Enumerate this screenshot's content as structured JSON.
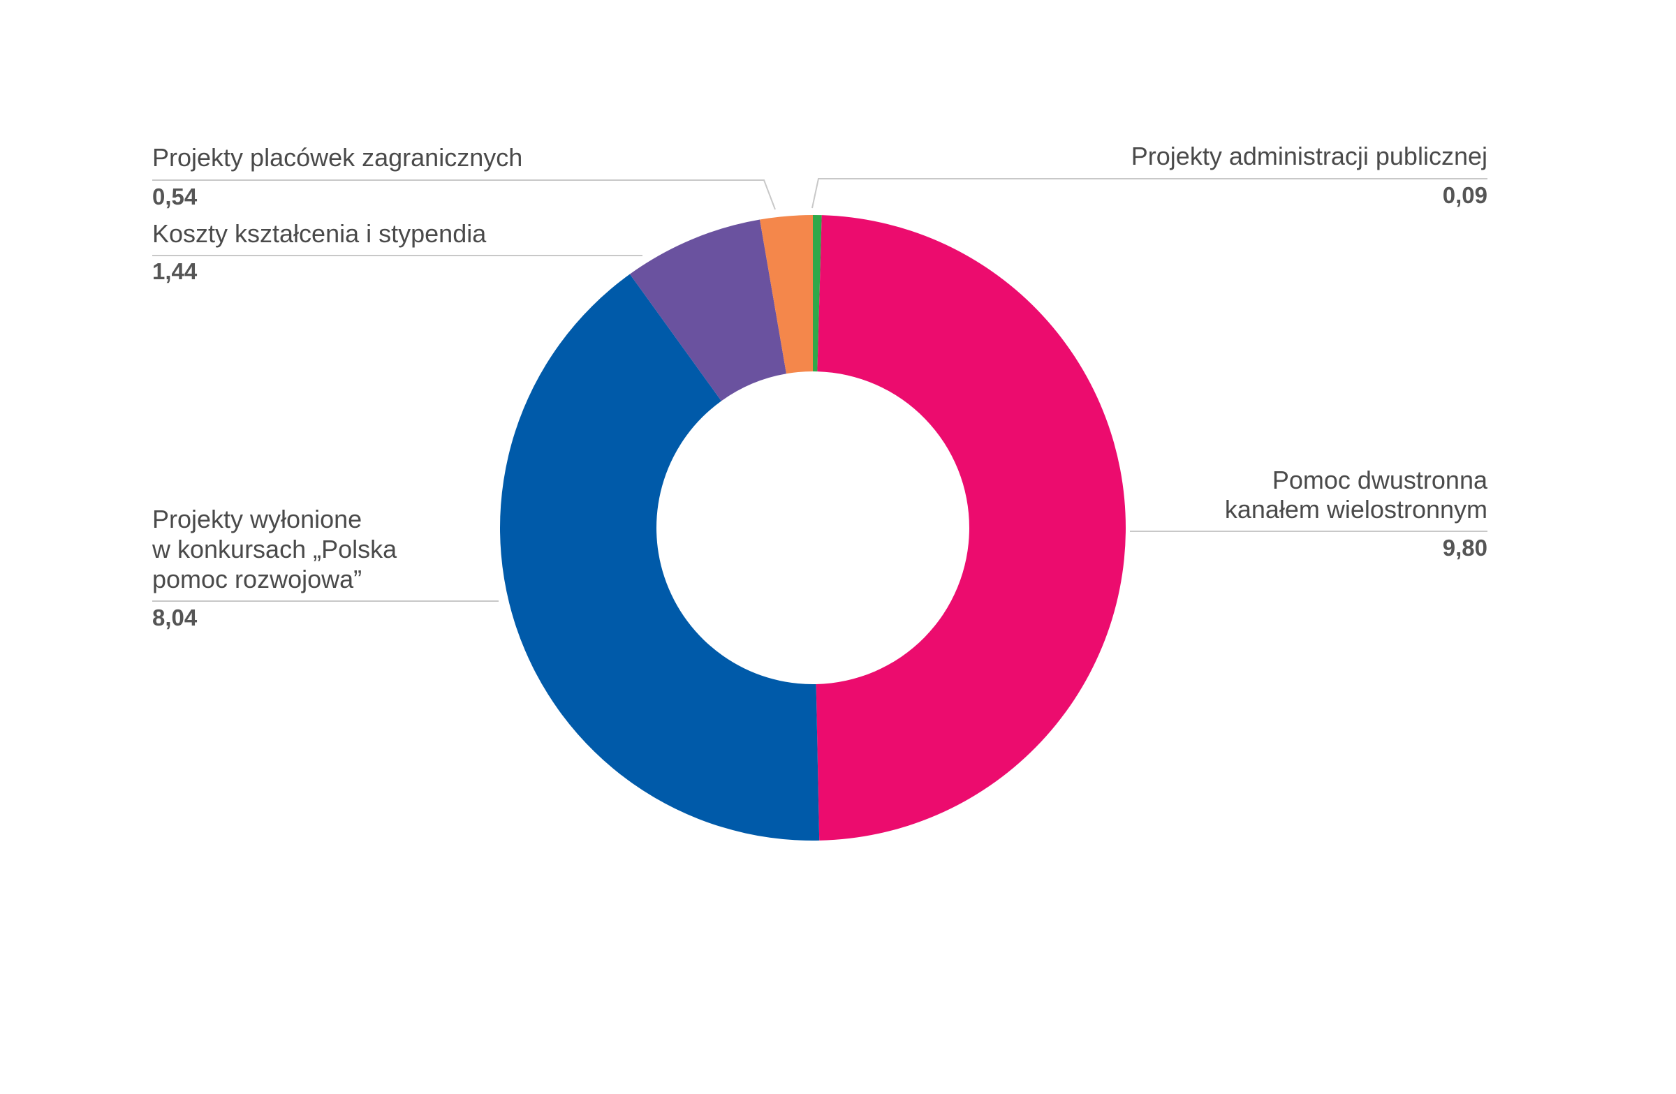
{
  "chart_data": {
    "type": "pie",
    "variant": "donut",
    "title": "",
    "slices": [
      {
        "label": "Projekty administracji publicznej",
        "lines": [
          "Projekty administracji publicznej"
        ],
        "value": 0.09,
        "value_text": "0,09",
        "color": "#2ea84a"
      },
      {
        "label": "Pomoc dwustronna kanałem wielostronnym",
        "lines": [
          "Pomoc dwustronna",
          "kanałem wielostronnym"
        ],
        "value": 9.8,
        "value_text": "9,80",
        "color": "#ec0c6e"
      },
      {
        "label": "Projekty wyłonione w konkursach „Polska pomoc rozwojowa”",
        "lines": [
          "Projekty wyłonione",
          "w konkursach „Polska",
          "pomoc rozwojowa”"
        ],
        "value": 8.04,
        "value_text": "8,04",
        "color": "#005aa9"
      },
      {
        "label": "Koszty kształcenia i stypendia",
        "lines": [
          "Koszty kształcenia i stypendia"
        ],
        "value": 1.44,
        "value_text": "1,44",
        "color": "#6a529f"
      },
      {
        "label": "Projekty placówek zagranicznych",
        "lines": [
          "Projekty placówek zagranicznych"
        ],
        "value": 0.54,
        "value_text": "0,54",
        "color": "#f4874b"
      }
    ],
    "legend": "callouts",
    "start_angle": "12 o'clock, clockwise"
  }
}
